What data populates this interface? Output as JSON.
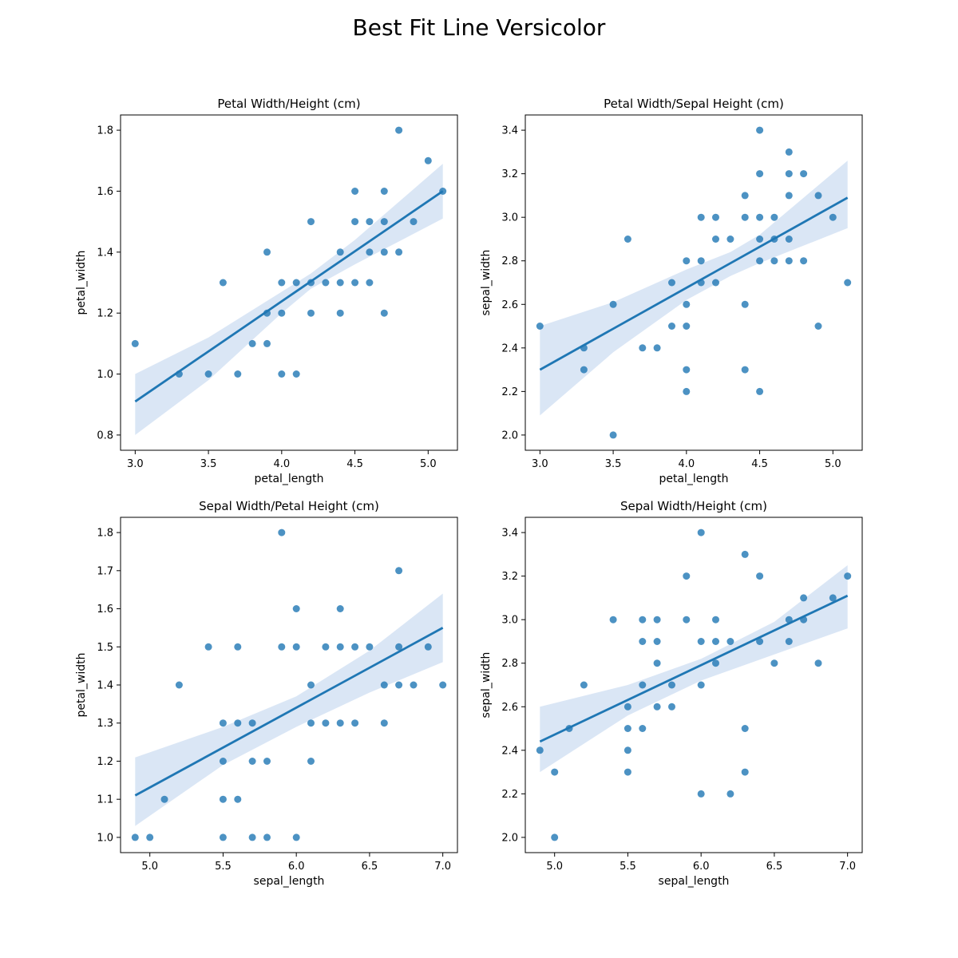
{
  "figure": {
    "title": "Best Fit Line Versicolor"
  },
  "colors": {
    "points": "#1f77b4",
    "line": "#1f77b4",
    "ci_band": "#aec7e8",
    "axes": "#000000"
  },
  "chart_data": [
    {
      "type": "scatter",
      "title": "Petal Width/Height (cm)",
      "xlabel": "petal_length",
      "ylabel": "petal_width",
      "xlim": [
        2.9,
        5.2
      ],
      "ylim": [
        0.75,
        1.85
      ],
      "xticks": [
        3.0,
        3.5,
        4.0,
        4.5,
        5.0
      ],
      "yticks": [
        0.8,
        1.0,
        1.2,
        1.4,
        1.6,
        1.8
      ],
      "xtick_labels": [
        "3.0",
        "3.5",
        "4.0",
        "4.5",
        "5.0"
      ],
      "ytick_labels": [
        "0.8",
        "1.0",
        "1.2",
        "1.4",
        "1.6",
        "1.8"
      ],
      "points": [
        [
          3.0,
          1.1
        ],
        [
          3.3,
          1.0
        ],
        [
          3.5,
          1.0
        ],
        [
          3.6,
          1.3
        ],
        [
          3.7,
          1.0
        ],
        [
          3.8,
          1.1
        ],
        [
          3.9,
          1.4
        ],
        [
          3.9,
          1.2
        ],
        [
          3.9,
          1.1
        ],
        [
          4.0,
          1.3
        ],
        [
          4.0,
          1.2
        ],
        [
          4.0,
          1.0
        ],
        [
          4.1,
          1.3
        ],
        [
          4.1,
          1.0
        ],
        [
          4.2,
          1.5
        ],
        [
          4.2,
          1.3
        ],
        [
          4.2,
          1.2
        ],
        [
          4.3,
          1.3
        ],
        [
          4.4,
          1.4
        ],
        [
          4.4,
          1.3
        ],
        [
          4.4,
          1.2
        ],
        [
          4.5,
          1.6
        ],
        [
          4.5,
          1.5
        ],
        [
          4.5,
          1.3
        ],
        [
          4.6,
          1.5
        ],
        [
          4.6,
          1.4
        ],
        [
          4.6,
          1.3
        ],
        [
          4.7,
          1.6
        ],
        [
          4.7,
          1.5
        ],
        [
          4.7,
          1.4
        ],
        [
          4.7,
          1.2
        ],
        [
          4.8,
          1.8
        ],
        [
          4.8,
          1.4
        ],
        [
          4.9,
          1.5
        ],
        [
          5.0,
          1.7
        ],
        [
          5.1,
          1.6
        ]
      ],
      "fit_line": [
        [
          3.0,
          0.91
        ],
        [
          5.1,
          1.6
        ]
      ],
      "ci_band": {
        "x": [
          3.0,
          3.5,
          4.0,
          4.2,
          4.5,
          5.1
        ],
        "lower": [
          0.8,
          0.98,
          1.2,
          1.28,
          1.36,
          1.51
        ],
        "upper": [
          1.0,
          1.12,
          1.27,
          1.33,
          1.44,
          1.69
        ]
      }
    },
    {
      "type": "scatter",
      "title": "Petal Width/Sepal Height (cm)",
      "xlabel": "petal_length",
      "ylabel": "sepal_width",
      "xlim": [
        2.9,
        5.2
      ],
      "ylim": [
        1.93,
        3.47
      ],
      "xticks": [
        3.0,
        3.5,
        4.0,
        4.5,
        5.0
      ],
      "yticks": [
        2.0,
        2.2,
        2.4,
        2.6,
        2.8,
        3.0,
        3.2,
        3.4
      ],
      "xtick_labels": [
        "3.0",
        "3.5",
        "4.0",
        "4.5",
        "5.0"
      ],
      "ytick_labels": [
        "2.0",
        "2.2",
        "2.4",
        "2.6",
        "2.8",
        "3.0",
        "3.2",
        "3.4"
      ],
      "points": [
        [
          3.0,
          2.5
        ],
        [
          3.3,
          2.4
        ],
        [
          3.3,
          2.3
        ],
        [
          3.5,
          2.6
        ],
        [
          3.5,
          2.0
        ],
        [
          3.6,
          2.9
        ],
        [
          3.7,
          2.4
        ],
        [
          3.8,
          2.4
        ],
        [
          3.9,
          2.7
        ],
        [
          3.9,
          2.5
        ],
        [
          4.0,
          2.8
        ],
        [
          4.0,
          2.6
        ],
        [
          4.0,
          2.5
        ],
        [
          4.0,
          2.3
        ],
        [
          4.0,
          2.2
        ],
        [
          4.1,
          3.0
        ],
        [
          4.1,
          2.8
        ],
        [
          4.1,
          2.7
        ],
        [
          4.2,
          3.0
        ],
        [
          4.2,
          2.9
        ],
        [
          4.2,
          2.7
        ],
        [
          4.3,
          2.9
        ],
        [
          4.4,
          3.1
        ],
        [
          4.4,
          3.0
        ],
        [
          4.4,
          2.6
        ],
        [
          4.4,
          2.3
        ],
        [
          4.5,
          3.4
        ],
        [
          4.5,
          3.2
        ],
        [
          4.5,
          3.0
        ],
        [
          4.5,
          2.9
        ],
        [
          4.5,
          2.8
        ],
        [
          4.5,
          2.2
        ],
        [
          4.6,
          3.0
        ],
        [
          4.6,
          2.9
        ],
        [
          4.6,
          2.8
        ],
        [
          4.7,
          3.3
        ],
        [
          4.7,
          3.2
        ],
        [
          4.7,
          3.1
        ],
        [
          4.7,
          2.9
        ],
        [
          4.7,
          2.8
        ],
        [
          4.8,
          3.2
        ],
        [
          4.8,
          2.8
        ],
        [
          4.9,
          3.1
        ],
        [
          4.9,
          2.5
        ],
        [
          5.0,
          3.0
        ],
        [
          5.1,
          2.7
        ]
      ],
      "fit_line": [
        [
          3.0,
          2.3
        ],
        [
          5.1,
          3.09
        ]
      ],
      "ci_band": {
        "x": [
          3.0,
          3.5,
          4.0,
          4.3,
          4.5,
          5.1
        ],
        "lower": [
          2.09,
          2.38,
          2.62,
          2.73,
          2.79,
          2.95
        ],
        "upper": [
          2.5,
          2.61,
          2.76,
          2.84,
          2.92,
          3.26
        ]
      }
    },
    {
      "type": "scatter",
      "title": "Sepal Width/Petal Height (cm)",
      "xlabel": "sepal_length",
      "ylabel": "petal_width",
      "xlim": [
        4.8,
        7.1
      ],
      "ylim": [
        0.96,
        1.84
      ],
      "xticks": [
        5.0,
        5.5,
        6.0,
        6.5,
        7.0
      ],
      "yticks": [
        1.0,
        1.1,
        1.2,
        1.3,
        1.4,
        1.5,
        1.6,
        1.7,
        1.8
      ],
      "xtick_labels": [
        "5.0",
        "5.5",
        "6.0",
        "6.5",
        "7.0"
      ],
      "ytick_labels": [
        "1.0",
        "1.1",
        "1.2",
        "1.3",
        "1.4",
        "1.5",
        "1.6",
        "1.7",
        "1.8"
      ],
      "points": [
        [
          4.9,
          1.0
        ],
        [
          5.0,
          1.0
        ],
        [
          5.1,
          1.1
        ],
        [
          5.2,
          1.4
        ],
        [
          5.4,
          1.5
        ],
        [
          5.5,
          1.3
        ],
        [
          5.5,
          1.2
        ],
        [
          5.5,
          1.1
        ],
        [
          5.5,
          1.0
        ],
        [
          5.6,
          1.5
        ],
        [
          5.6,
          1.3
        ],
        [
          5.6,
          1.1
        ],
        [
          5.7,
          1.3
        ],
        [
          5.7,
          1.2
        ],
        [
          5.7,
          1.0
        ],
        [
          5.8,
          1.2
        ],
        [
          5.8,
          1.0
        ],
        [
          5.9,
          1.8
        ],
        [
          5.9,
          1.5
        ],
        [
          6.0,
          1.6
        ],
        [
          6.0,
          1.5
        ],
        [
          6.0,
          1.0
        ],
        [
          6.1,
          1.4
        ],
        [
          6.1,
          1.3
        ],
        [
          6.1,
          1.2
        ],
        [
          6.2,
          1.5
        ],
        [
          6.2,
          1.3
        ],
        [
          6.3,
          1.6
        ],
        [
          6.3,
          1.5
        ],
        [
          6.3,
          1.3
        ],
        [
          6.4,
          1.5
        ],
        [
          6.4,
          1.3
        ],
        [
          6.5,
          1.5
        ],
        [
          6.6,
          1.4
        ],
        [
          6.6,
          1.3
        ],
        [
          6.7,
          1.7
        ],
        [
          6.7,
          1.5
        ],
        [
          6.7,
          1.4
        ],
        [
          6.8,
          1.4
        ],
        [
          6.9,
          1.5
        ],
        [
          7.0,
          1.4
        ]
      ],
      "fit_line": [
        [
          4.9,
          1.11
        ],
        [
          7.0,
          1.55
        ]
      ],
      "ci_band": {
        "x": [
          4.9,
          5.5,
          6.0,
          6.5,
          7.0
        ],
        "lower": [
          1.03,
          1.19,
          1.29,
          1.38,
          1.46
        ],
        "upper": [
          1.21,
          1.29,
          1.37,
          1.49,
          1.64
        ]
      }
    },
    {
      "type": "scatter",
      "title": "Sepal Width/Height (cm)",
      "xlabel": "sepal_length",
      "ylabel": "sepal_width",
      "xlim": [
        4.8,
        7.1
      ],
      "ylim": [
        1.93,
        3.47
      ],
      "xticks": [
        5.0,
        5.5,
        6.0,
        6.5,
        7.0
      ],
      "yticks": [
        2.0,
        2.2,
        2.4,
        2.6,
        2.8,
        3.0,
        3.2,
        3.4
      ],
      "xtick_labels": [
        "5.0",
        "5.5",
        "6.0",
        "6.5",
        "7.0"
      ],
      "ytick_labels": [
        "2.0",
        "2.2",
        "2.4",
        "2.6",
        "2.8",
        "3.0",
        "3.2",
        "3.4"
      ],
      "points": [
        [
          4.9,
          2.4
        ],
        [
          5.0,
          2.3
        ],
        [
          5.0,
          2.0
        ],
        [
          5.1,
          2.5
        ],
        [
          5.2,
          2.7
        ],
        [
          5.4,
          3.0
        ],
        [
          5.5,
          2.6
        ],
        [
          5.5,
          2.5
        ],
        [
          5.5,
          2.4
        ],
        [
          5.5,
          2.3
        ],
        [
          5.6,
          3.0
        ],
        [
          5.6,
          2.9
        ],
        [
          5.6,
          2.7
        ],
        [
          5.6,
          2.5
        ],
        [
          5.7,
          3.0
        ],
        [
          5.7,
          2.9
        ],
        [
          5.7,
          2.8
        ],
        [
          5.7,
          2.6
        ],
        [
          5.8,
          2.7
        ],
        [
          5.8,
          2.6
        ],
        [
          5.9,
          3.2
        ],
        [
          5.9,
          3.0
        ],
        [
          6.0,
          3.4
        ],
        [
          6.0,
          2.9
        ],
        [
          6.0,
          2.7
        ],
        [
          6.0,
          2.2
        ],
        [
          6.1,
          3.0
        ],
        [
          6.1,
          2.9
        ],
        [
          6.1,
          2.8
        ],
        [
          6.2,
          2.9
        ],
        [
          6.2,
          2.2
        ],
        [
          6.3,
          3.3
        ],
        [
          6.3,
          2.5
        ],
        [
          6.3,
          2.3
        ],
        [
          6.4,
          3.2
        ],
        [
          6.4,
          2.9
        ],
        [
          6.5,
          2.8
        ],
        [
          6.6,
          3.0
        ],
        [
          6.6,
          2.9
        ],
        [
          6.7,
          3.1
        ],
        [
          6.7,
          3.0
        ],
        [
          6.8,
          2.8
        ],
        [
          6.9,
          3.1
        ],
        [
          7.0,
          3.2
        ]
      ],
      "fit_line": [
        [
          4.9,
          2.44
        ],
        [
          7.0,
          3.11
        ]
      ],
      "ci_band": {
        "x": [
          4.9,
          5.5,
          6.0,
          6.5,
          7.0
        ],
        "lower": [
          2.3,
          2.56,
          2.72,
          2.84,
          2.96
        ],
        "upper": [
          2.6,
          2.7,
          2.82,
          2.99,
          3.25
        ]
      }
    }
  ]
}
